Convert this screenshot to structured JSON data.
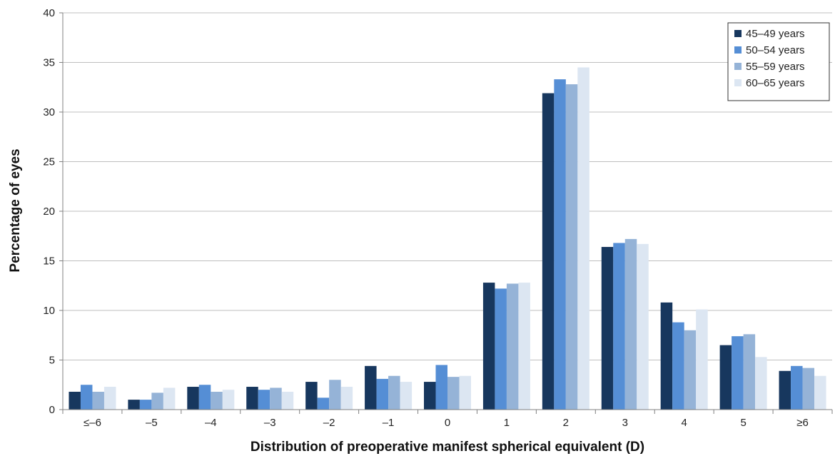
{
  "chart_data": {
    "type": "bar",
    "title": "",
    "xlabel": "Distribution of preoperative manifest spherical equivalent (D)",
    "ylabel": "Percentage of eyes",
    "ylim": [
      0,
      40
    ],
    "yticks": [
      0,
      5,
      10,
      15,
      20,
      25,
      30,
      35,
      40
    ],
    "grid": true,
    "legend_position": "top-right",
    "categories": [
      "≤–6",
      "–5",
      "–4",
      "–3",
      "–2",
      "–1",
      "0",
      "1",
      "2",
      "3",
      "4",
      "5",
      "≥6"
    ],
    "series": [
      {
        "name": "45–49 years",
        "color": "#17375e",
        "values": [
          1.8,
          1.0,
          2.3,
          2.3,
          2.8,
          4.4,
          2.8,
          12.8,
          31.9,
          16.4,
          10.8,
          6.5,
          3.9
        ]
      },
      {
        "name": "50–54 years",
        "color": "#558ed5",
        "values": [
          2.5,
          1.0,
          2.5,
          2.0,
          1.2,
          3.1,
          4.5,
          12.2,
          33.3,
          16.8,
          8.8,
          7.4,
          4.4
        ]
      },
      {
        "name": "55–59 years",
        "color": "#95b3d7",
        "values": [
          1.8,
          1.7,
          1.8,
          2.2,
          3.0,
          3.4,
          3.3,
          12.7,
          32.8,
          17.2,
          8.0,
          7.6,
          4.2
        ]
      },
      {
        "name": "60–65 years",
        "color": "#dce6f2",
        "values": [
          2.3,
          2.2,
          2.0,
          1.8,
          2.3,
          2.8,
          3.4,
          12.8,
          34.5,
          16.7,
          10.1,
          5.3,
          3.4
        ]
      }
    ]
  }
}
